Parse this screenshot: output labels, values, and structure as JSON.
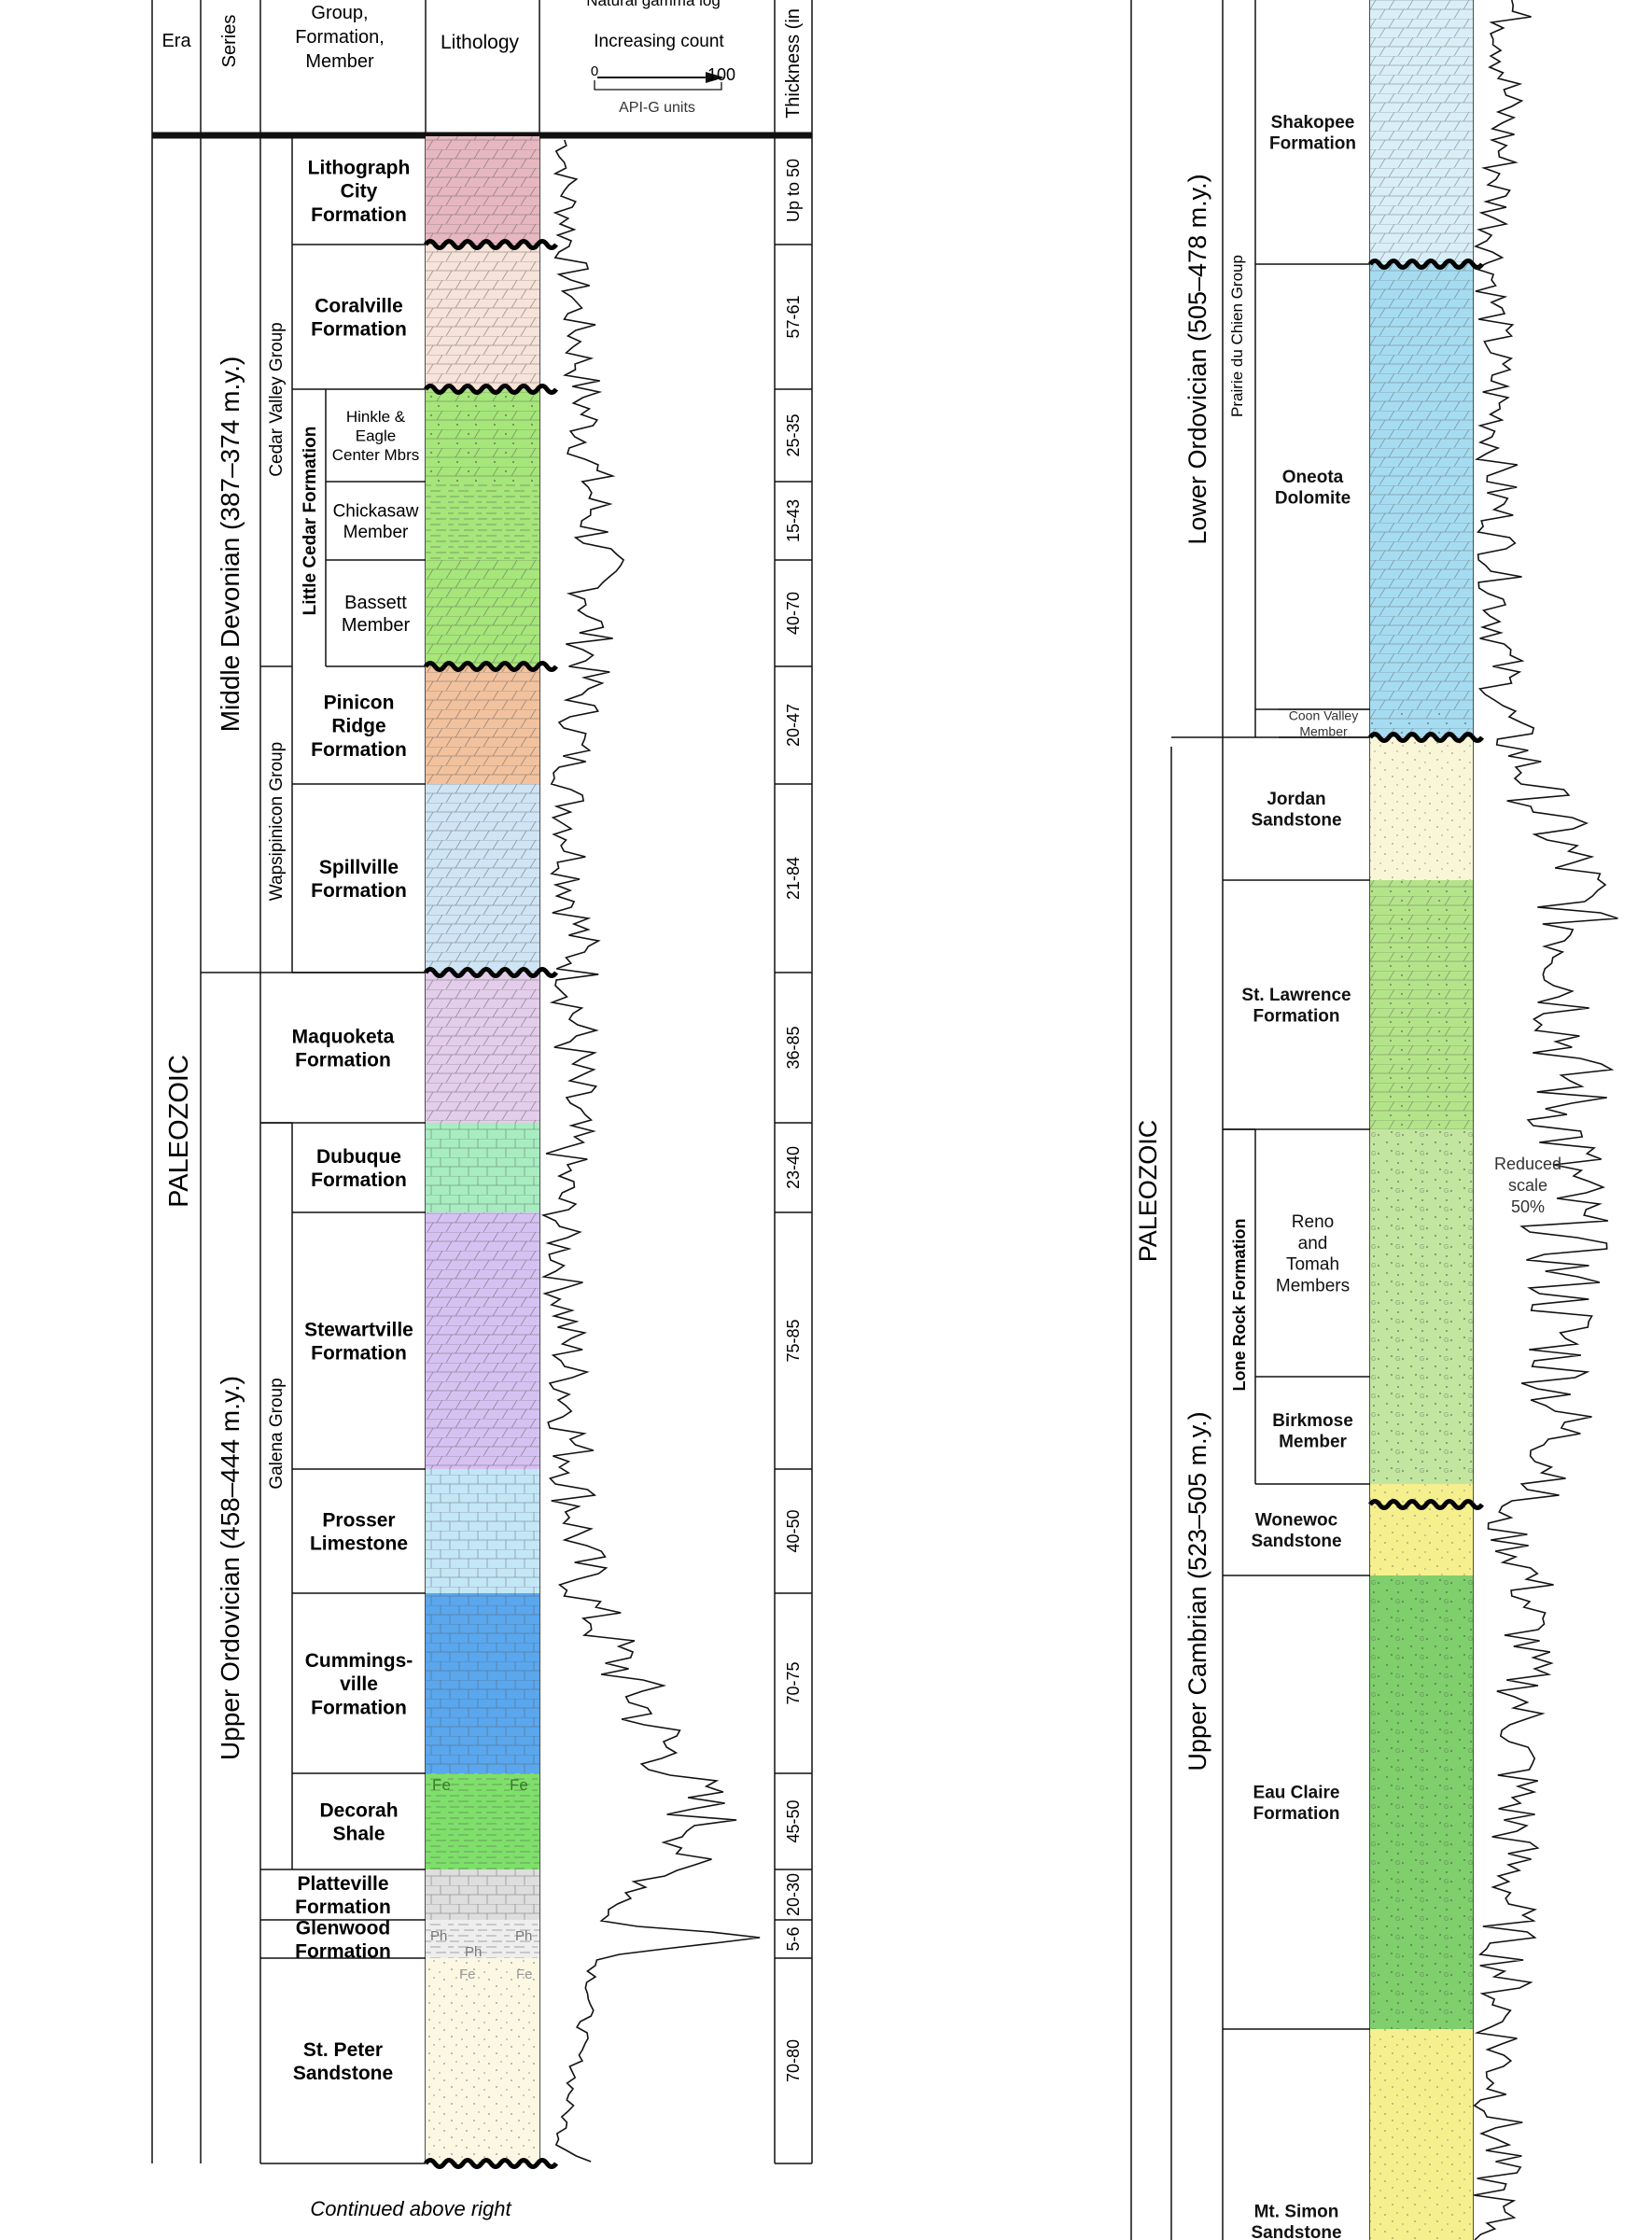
{
  "header": {
    "era": "Era",
    "series": "Series",
    "group_lines": [
      "Group,",
      "Formation,",
      "Member"
    ],
    "lithology": "Lithology",
    "gamma_title": "Natural gamma log",
    "gamma_sub": "Increasing count",
    "gamma_min": "0",
    "gamma_max": "100",
    "gamma_units": "API-G units",
    "thickness": "Thickness (in"
  },
  "left": {
    "era": "PALEOZOIC",
    "series": [
      {
        "id": "mid-dev",
        "label": "Middle Devonian (387–374 m.y.)"
      },
      {
        "id": "up-ord",
        "label": "Upper Ordovician (458–444 m.y.)"
      }
    ],
    "groups": [
      {
        "id": "cedar-valley",
        "label": "Cedar Valley Group"
      },
      {
        "id": "little-cedar",
        "label": "Little Cedar Formation"
      },
      {
        "id": "wapsipinicon",
        "label": "Wapsipinicon Group"
      },
      {
        "id": "galena",
        "label": "Galena  Group"
      }
    ],
    "units": [
      {
        "id": "lithograph-city",
        "lines": [
          "Lithograph",
          "City",
          "Formation"
        ],
        "thickness": "Up to 50",
        "color": "#e6b7c1"
      },
      {
        "id": "coralville",
        "lines": [
          "Coralville",
          "Formation"
        ],
        "thickness": "57-61",
        "color": "#f6e3da"
      },
      {
        "id": "hinkle-eagle",
        "lines": [
          "Hinkle &",
          "Eagle",
          "Center Mbrs"
        ],
        "thickness": "25-35",
        "color": "#a6e67a"
      },
      {
        "id": "chickasaw",
        "lines": [
          "Chickasaw",
          "Member"
        ],
        "thickness": "15-43",
        "color": "#a6e67a"
      },
      {
        "id": "bassett",
        "lines": [
          "Bassett",
          "Member"
        ],
        "thickness": "40-70",
        "color": "#a6e67a"
      },
      {
        "id": "pinicon-ridge",
        "lines": [
          "Pinicon",
          "Ridge",
          "Formation"
        ],
        "thickness": "20-47",
        "color": "#f2c29e"
      },
      {
        "id": "spillville",
        "lines": [
          "Spillville",
          "Formation"
        ],
        "thickness": "21-84",
        "color": "#cfe5f5"
      },
      {
        "id": "maquoketa",
        "lines": [
          "Maquoketa",
          "Formation"
        ],
        "thickness": "36-85",
        "color": "#e3cdea"
      },
      {
        "id": "dubuque",
        "lines": [
          "Dubuque",
          "Formation"
        ],
        "thickness": "23-40",
        "color": "#a7edc0"
      },
      {
        "id": "stewartville",
        "lines": [
          "Stewartville",
          "Formation"
        ],
        "thickness": "75-85",
        "color": "#d6c2f2"
      },
      {
        "id": "prosser",
        "lines": [
          "Prosser",
          "Limestone"
        ],
        "thickness": "40-50",
        "color": "#c4e7f7"
      },
      {
        "id": "cummingsville",
        "lines": [
          "Cummings-",
          "ville",
          "Formation"
        ],
        "thickness": "70-75",
        "color": "#5aa7ee"
      },
      {
        "id": "decorah",
        "lines": [
          "Decorah",
          "Shale"
        ],
        "thickness": "45-50",
        "color": "#7ee06a"
      },
      {
        "id": "platteville",
        "lines": [
          "Platteville",
          "Formation"
        ],
        "thickness": "20-30",
        "color": "#dedede"
      },
      {
        "id": "glenwood",
        "lines": [
          "Glenwood",
          "Formation"
        ],
        "thickness": "5-6",
        "color": "#eeeeee"
      },
      {
        "id": "st-peter",
        "lines": [
          "St. Peter",
          "Sandstone"
        ],
        "thickness": "70-80",
        "color": "#fbf7e2"
      }
    ],
    "symbols": {
      "fe": "Fe",
      "ph": "Ph"
    },
    "continued": "Continued above right"
  },
  "right": {
    "era": "PALEOZOIC",
    "series": [
      {
        "id": "low-ord",
        "label": "Lower Ordovician (505–478 m.y.)"
      },
      {
        "id": "up-cam",
        "label": "Upper Cambrian (523–505 m.y.)"
      }
    ],
    "groups": [
      {
        "id": "prairie-du-chien",
        "label": "Prairie du Chien Group"
      },
      {
        "id": "lone-rock",
        "label": "Lone Rock  Formation"
      }
    ],
    "units": [
      {
        "id": "shakopee",
        "lines": [
          "Shakopee",
          "Formation"
        ],
        "color": "#d9eff7"
      },
      {
        "id": "oneota",
        "lines": [
          "Oneota",
          "Dolomite"
        ],
        "color": "#a6dcf2"
      },
      {
        "id": "coon-valley",
        "lines": [
          "Coon Valley",
          "Member"
        ],
        "color": "#a6dcf2"
      },
      {
        "id": "jordan",
        "lines": [
          "Jordan",
          "Sandstone"
        ],
        "color": "#f9f6d8"
      },
      {
        "id": "st-lawrence",
        "lines": [
          "St. Lawrence",
          "Formation"
        ],
        "color": "#b4e489"
      },
      {
        "id": "reno-tomah",
        "lines": [
          "Reno",
          "and",
          "Tomah",
          "Members"
        ],
        "color": "#c2e6a0"
      },
      {
        "id": "birkmose",
        "lines": [
          "Birkmose",
          "Member"
        ],
        "color": "#c2e6a0"
      },
      {
        "id": "wonewoc",
        "lines": [
          "Wonewoc",
          "Sandstone"
        ],
        "color": "#f5ef8e"
      },
      {
        "id": "eau-claire",
        "lines": [
          "Eau Claire",
          "Formation"
        ],
        "color": "#7fcf6c"
      },
      {
        "id": "mt-simon",
        "lines": [
          "Mt. Simon",
          "Sandstone"
        ],
        "color": "#f5ef8e"
      }
    ],
    "reduced_scale": [
      "Reduced",
      "scale",
      "50%"
    ]
  }
}
